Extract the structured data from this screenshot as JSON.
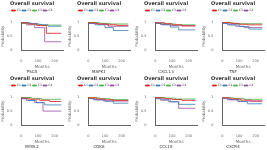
{
  "chart_data": [
    {
      "type": "line",
      "title": "Overall survival",
      "subtitle": "PSCA",
      "x_label": "Months",
      "y_label": "Probability",
      "xlim": [
        0,
        250
      ],
      "xticks": [
        0,
        100,
        200
      ],
      "ylim": [
        0,
        1
      ],
      "yticks": [
        0,
        0.5,
        1
      ],
      "legend": "top",
      "line_style": "step",
      "series": [
        {
          "name": "C1",
          "color": "#e41a1c",
          "x": [
            0,
            40,
            90,
            150,
            210,
            240
          ],
          "values": [
            1,
            0.97,
            0.93,
            0.88,
            0.6,
            0.6
          ]
        },
        {
          "name": "C2",
          "color": "#377eb8",
          "x": [
            0,
            50,
            100,
            160,
            220,
            240
          ],
          "values": [
            1,
            0.98,
            0.95,
            0.9,
            0.85,
            0.85
          ]
        },
        {
          "name": "C3",
          "color": "#4daf4a",
          "x": [
            0,
            60,
            120,
            180,
            240
          ],
          "values": [
            1,
            0.96,
            0.92,
            0.89,
            0.89
          ]
        },
        {
          "name": "C4",
          "color": "#984ea3",
          "x": [
            0,
            30,
            80,
            140,
            200,
            240
          ],
          "values": [
            1,
            0.95,
            0.9,
            0.8,
            0.3,
            0.3
          ]
        }
      ]
    },
    {
      "type": "line",
      "title": "Overall survival",
      "subtitle": "MAPK1",
      "x_label": "Months",
      "y_label": "Probability",
      "xlim": [
        0,
        250
      ],
      "xticks": [
        0,
        100,
        200
      ],
      "ylim": [
        0,
        1
      ],
      "yticks": [
        0,
        0.5,
        1
      ],
      "legend": "top",
      "line_style": "step",
      "series": [
        {
          "name": "C1",
          "color": "#e41a1c",
          "x": [
            0,
            50,
            110,
            170,
            230,
            240
          ],
          "values": [
            1,
            0.97,
            0.93,
            0.9,
            0.88,
            0.88
          ]
        },
        {
          "name": "C2",
          "color": "#377eb8",
          "x": [
            0,
            40,
            100,
            150,
            200,
            240
          ],
          "values": [
            1,
            0.96,
            0.9,
            0.8,
            0.7,
            0.7
          ]
        },
        {
          "name": "C3",
          "color": "#4daf4a",
          "x": [
            0,
            70,
            130,
            190,
            240
          ],
          "values": [
            1,
            0.98,
            0.95,
            0.93,
            0.93
          ]
        },
        {
          "name": "C4",
          "color": "#984ea3",
          "x": [
            0,
            60,
            120,
            180,
            240
          ],
          "values": [
            1,
            0.95,
            0.92,
            0.85,
            0.85
          ]
        }
      ]
    },
    {
      "type": "line",
      "title": "Overall survival",
      "subtitle": "CXCL13",
      "x_label": "Months",
      "y_label": "Probability",
      "xlim": [
        0,
        250
      ],
      "xticks": [
        0,
        100,
        200
      ],
      "ylim": [
        0,
        1
      ],
      "yticks": [
        0,
        0.5,
        1
      ],
      "legend": "top",
      "line_style": "step",
      "series": [
        {
          "name": "C1",
          "color": "#e41a1c",
          "x": [
            0,
            50,
            100,
            160,
            220,
            240
          ],
          "values": [
            1,
            0.97,
            0.94,
            0.9,
            0.86,
            0.86
          ]
        },
        {
          "name": "C2",
          "color": "#377eb8",
          "x": [
            0,
            40,
            90,
            140,
            200,
            240
          ],
          "values": [
            1,
            0.95,
            0.9,
            0.82,
            0.72,
            0.72
          ]
        },
        {
          "name": "C3",
          "color": "#4daf4a",
          "x": [
            0,
            60,
            120,
            180,
            240
          ],
          "values": [
            1,
            0.97,
            0.93,
            0.9,
            0.9
          ]
        },
        {
          "name": "C4",
          "color": "#984ea3",
          "x": [
            0,
            30,
            90,
            150,
            240
          ],
          "values": [
            1,
            0.96,
            0.91,
            0.87,
            0.87
          ]
        }
      ]
    },
    {
      "type": "line",
      "title": "Overall survival",
      "subtitle": "TNF",
      "x_label": "Months",
      "y_label": "Probability",
      "xlim": [
        0,
        250
      ],
      "xticks": [
        0,
        100,
        200
      ],
      "ylim": [
        0,
        1
      ],
      "yticks": [
        0,
        0.5,
        1
      ],
      "legend": "top",
      "line_style": "step",
      "series": [
        {
          "name": "C1",
          "color": "#e41a1c",
          "x": [
            0,
            50,
            100,
            150,
            200,
            240
          ],
          "values": [
            1,
            0.98,
            0.95,
            0.92,
            0.9,
            0.9
          ]
        },
        {
          "name": "C2",
          "color": "#377eb8",
          "x": [
            0,
            40,
            100,
            160,
            210,
            240
          ],
          "values": [
            1,
            0.96,
            0.9,
            0.84,
            0.75,
            0.75
          ]
        },
        {
          "name": "C3",
          "color": "#4daf4a",
          "x": [
            0,
            70,
            140,
            240
          ],
          "values": [
            1,
            0.97,
            0.94,
            0.94
          ]
        },
        {
          "name": "C4",
          "color": "#984ea3",
          "x": [
            0,
            30,
            80,
            130,
            190,
            240
          ],
          "values": [
            1,
            0.95,
            0.9,
            0.85,
            0.8,
            0.8
          ]
        }
      ]
    },
    {
      "type": "line",
      "title": "Overall survival",
      "subtitle": "MYBL2",
      "x_label": "Months",
      "y_label": "Probability",
      "xlim": [
        0,
        250
      ],
      "xticks": [
        0,
        100,
        200
      ],
      "ylim": [
        0,
        1
      ],
      "yticks": [
        0,
        0.5,
        1
      ],
      "legend": "top",
      "line_style": "step",
      "series": [
        {
          "name": "C1",
          "color": "#e41a1c",
          "x": [
            0,
            50,
            110,
            170,
            230,
            240
          ],
          "values": [
            1,
            0.96,
            0.92,
            0.88,
            0.84,
            0.84
          ]
        },
        {
          "name": "C2",
          "color": "#377eb8",
          "x": [
            0,
            40,
            90,
            140,
            200,
            240
          ],
          "values": [
            1,
            0.95,
            0.88,
            0.8,
            0.72,
            0.72
          ]
        },
        {
          "name": "C3",
          "color": "#4daf4a",
          "x": [
            0,
            60,
            120,
            180,
            240
          ],
          "values": [
            1,
            0.98,
            0.95,
            0.92,
            0.92
          ]
        },
        {
          "name": "C4",
          "color": "#984ea3",
          "x": [
            0,
            30,
            80,
            130,
            180,
            240
          ],
          "values": [
            1,
            0.94,
            0.88,
            0.8,
            0.5,
            0.5
          ]
        }
      ]
    },
    {
      "type": "line",
      "title": "Overall survival",
      "subtitle": "CDK6",
      "x_label": "Months",
      "y_label": "Probability",
      "xlim": [
        0,
        250
      ],
      "xticks": [
        0,
        100,
        200
      ],
      "ylim": [
        0,
        1
      ],
      "yticks": [
        0,
        0.5,
        1
      ],
      "legend": "top",
      "line_style": "step",
      "series": [
        {
          "name": "C1",
          "color": "#e41a1c",
          "x": [
            0,
            50,
            100,
            150,
            200,
            240
          ],
          "values": [
            1,
            0.97,
            0.93,
            0.9,
            0.87,
            0.87
          ]
        },
        {
          "name": "C2",
          "color": "#377eb8",
          "x": [
            0,
            40,
            100,
            150,
            210,
            240
          ],
          "values": [
            1,
            0.95,
            0.9,
            0.85,
            0.78,
            0.78
          ]
        },
        {
          "name": "C3",
          "color": "#4daf4a",
          "x": [
            0,
            70,
            130,
            190,
            240
          ],
          "values": [
            1,
            0.97,
            0.94,
            0.91,
            0.91
          ]
        },
        {
          "name": "C4",
          "color": "#984ea3",
          "x": [
            0,
            30,
            90,
            150,
            240
          ],
          "values": [
            1,
            0.95,
            0.9,
            0.86,
            0.86
          ]
        }
      ]
    },
    {
      "type": "line",
      "title": "Overall survival",
      "subtitle": "CCL19",
      "x_label": "Months",
      "y_label": "Probability",
      "xlim": [
        0,
        250
      ],
      "xticks": [
        0,
        100,
        200
      ],
      "ylim": [
        0,
        1
      ],
      "yticks": [
        0,
        0.5,
        1
      ],
      "legend": "top",
      "line_style": "step",
      "series": [
        {
          "name": "C1",
          "color": "#e41a1c",
          "x": [
            0,
            50,
            100,
            160,
            220,
            240
          ],
          "values": [
            1,
            0.97,
            0.94,
            0.91,
            0.88,
            0.88
          ]
        },
        {
          "name": "C2",
          "color": "#377eb8",
          "x": [
            0,
            40,
            90,
            140,
            190,
            240
          ],
          "values": [
            1,
            0.95,
            0.9,
            0.83,
            0.74,
            0.74
          ]
        },
        {
          "name": "C3",
          "color": "#4daf4a",
          "x": [
            0,
            60,
            120,
            180,
            240
          ],
          "values": [
            1,
            0.98,
            0.96,
            0.93,
            0.93
          ]
        },
        {
          "name": "C4",
          "color": "#984ea3",
          "x": [
            0,
            30,
            80,
            140,
            200,
            240
          ],
          "values": [
            1,
            0.94,
            0.89,
            0.83,
            0.6,
            0.6
          ]
        }
      ]
    },
    {
      "type": "line",
      "title": "Overall survival",
      "subtitle": "CXCR4",
      "x_label": "Months",
      "y_label": "Probability",
      "xlim": [
        0,
        250
      ],
      "xticks": [
        0,
        100,
        200
      ],
      "ylim": [
        0,
        1
      ],
      "yticks": [
        0,
        0.5,
        1
      ],
      "legend": "top",
      "line_style": "step",
      "series": [
        {
          "name": "C1",
          "color": "#e41a1c",
          "x": [
            0,
            50,
            110,
            170,
            230,
            240
          ],
          "values": [
            1,
            0.97,
            0.93,
            0.89,
            0.86,
            0.86
          ]
        },
        {
          "name": "C2",
          "color": "#377eb8",
          "x": [
            0,
            40,
            100,
            150,
            200,
            240
          ],
          "values": [
            1,
            0.96,
            0.91,
            0.84,
            0.76,
            0.76
          ]
        },
        {
          "name": "C3",
          "color": "#4daf4a",
          "x": [
            0,
            70,
            130,
            190,
            240
          ],
          "values": [
            1,
            0.97,
            0.95,
            0.92,
            0.92
          ]
        },
        {
          "name": "C4",
          "color": "#984ea3",
          "x": [
            0,
            30,
            90,
            150,
            240
          ],
          "values": [
            1,
            0.95,
            0.9,
            0.85,
            0.85
          ]
        }
      ]
    }
  ]
}
